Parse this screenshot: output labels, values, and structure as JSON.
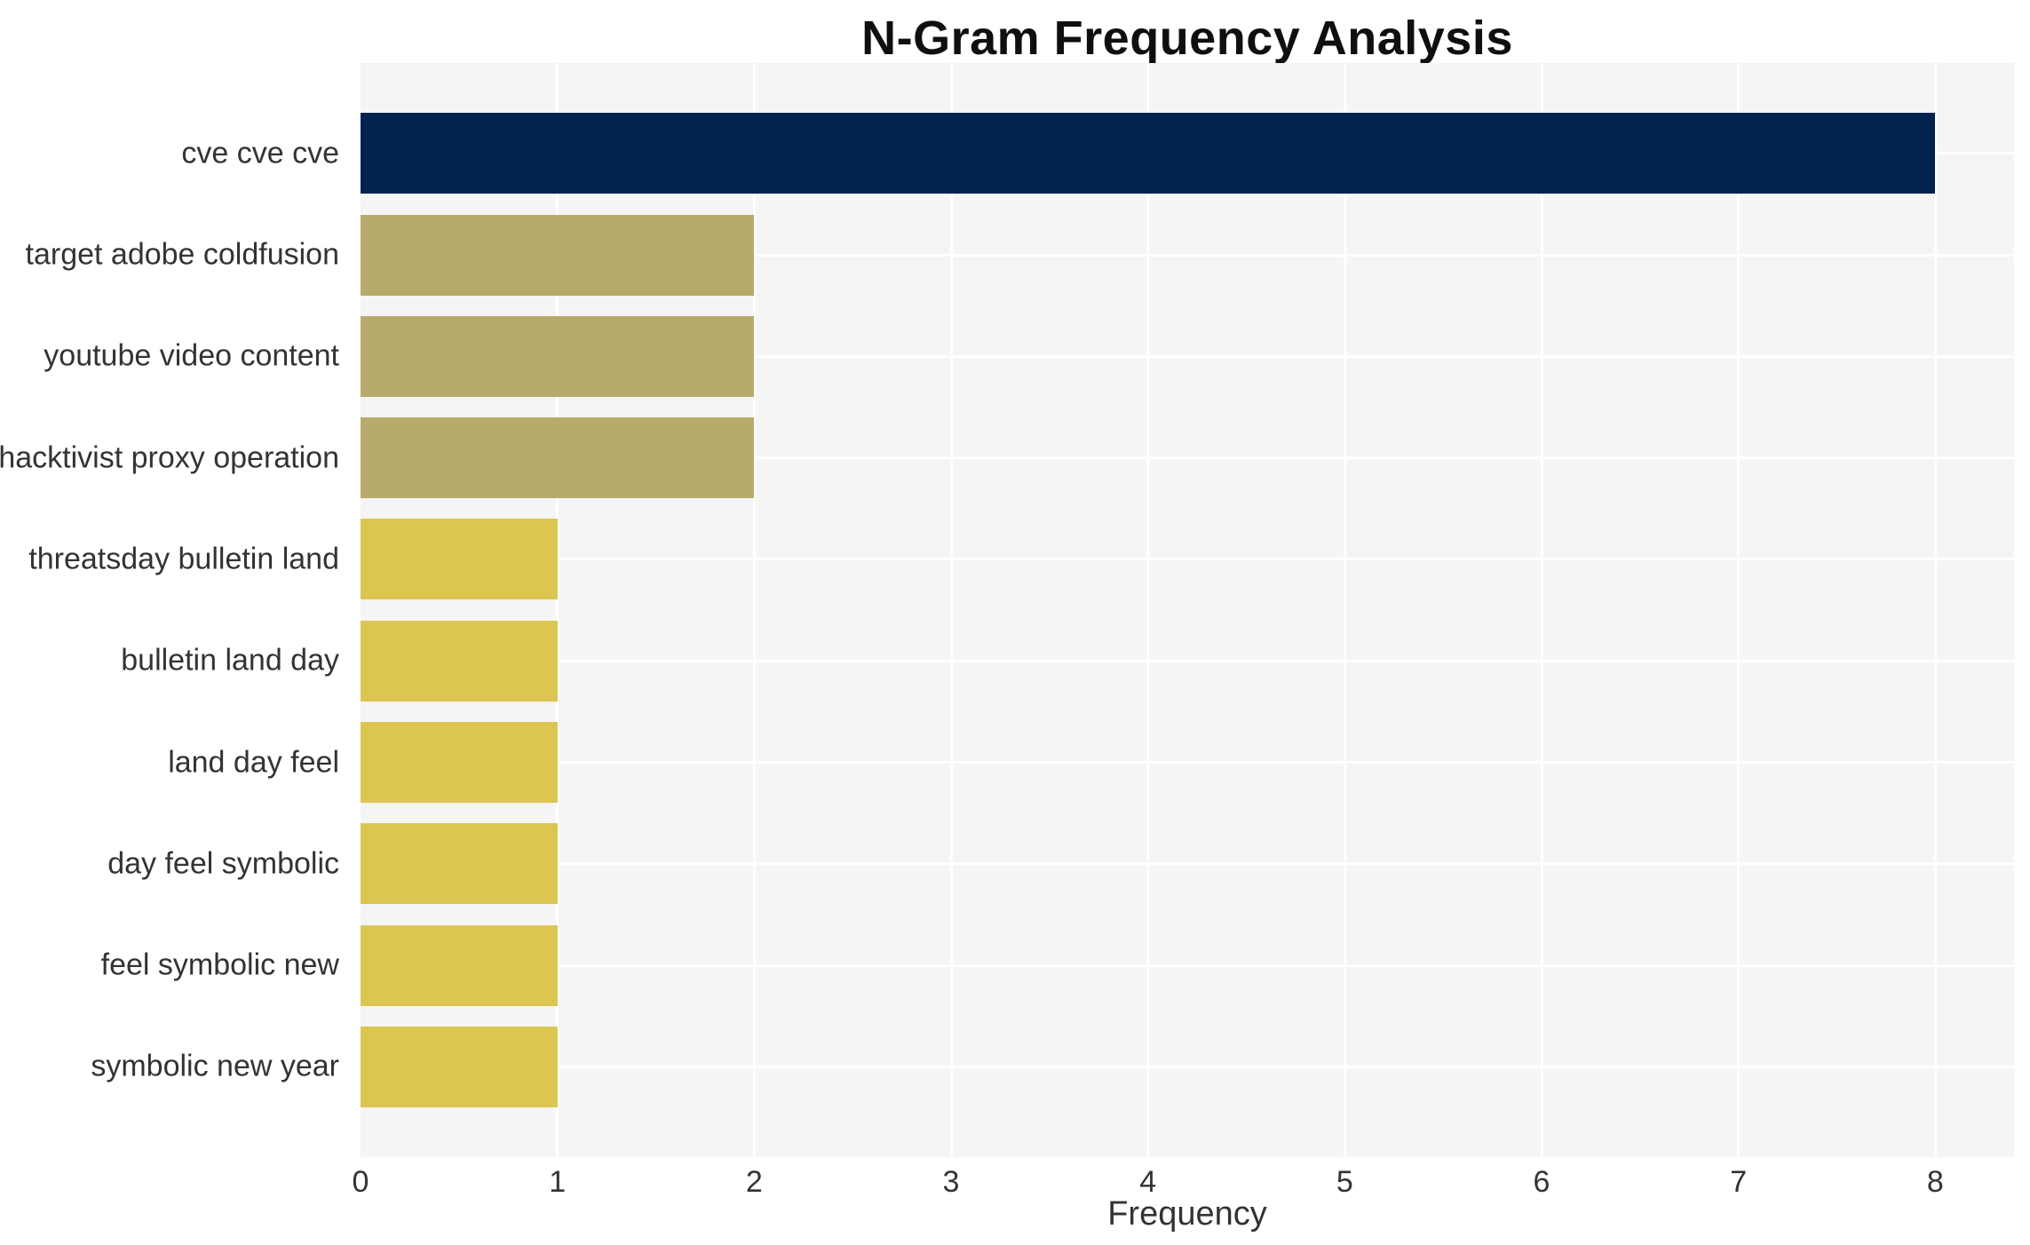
{
  "chart": {
    "title": "N-Gram Frequency Analysis",
    "xlabel": "Frequency"
  },
  "chart_data": {
    "type": "bar",
    "orientation": "horizontal",
    "title": "N-Gram Frequency Analysis",
    "xlabel": "Frequency",
    "ylabel": "",
    "categories": [
      "cve cve cve",
      "target adobe coldfusion",
      "youtube video content",
      "hacktivist proxy operation",
      "threatsday bulletin land",
      "bulletin land day",
      "land day feel",
      "day feel symbolic",
      "feel symbolic new",
      "symbolic new year"
    ],
    "values": [
      8,
      2,
      2,
      2,
      1,
      1,
      1,
      1,
      1,
      1
    ],
    "bar_colors": [
      "#02234d",
      "#b8aa6a",
      "#b8aa6a",
      "#b8aa6a",
      "#ddc552",
      "#ddc552",
      "#ddc552",
      "#ddc552",
      "#ddc552",
      "#ddc552"
    ],
    "xticks": [
      0,
      1,
      2,
      3,
      4,
      5,
      6,
      7,
      8
    ],
    "xlim": [
      0,
      8.4
    ],
    "grid": true,
    "legend": "none",
    "plot_bg_color": "#f5f5f6",
    "grid_color": "#ffffff",
    "text_color": "#333333",
    "title_color": "#0f0f0f"
  }
}
